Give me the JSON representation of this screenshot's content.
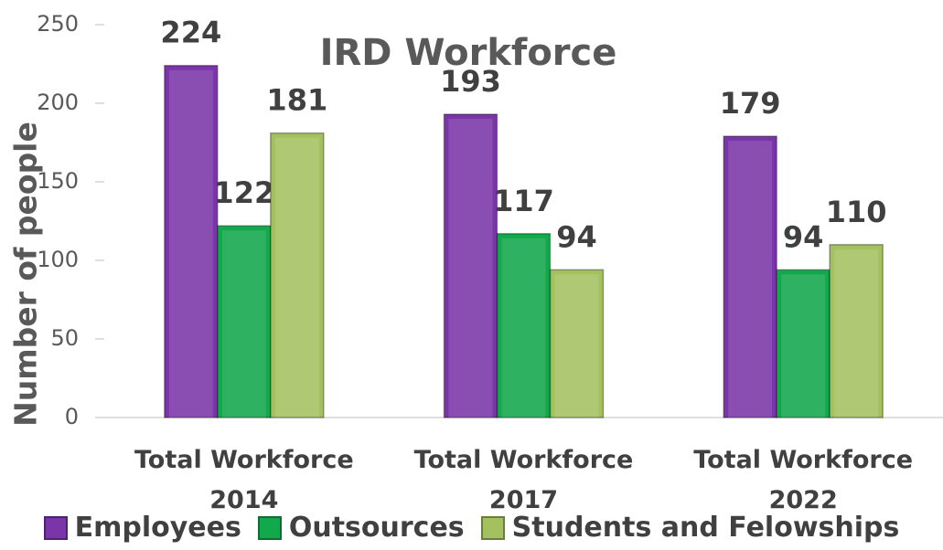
{
  "chart_data": {
    "type": "bar",
    "title": "IRD Workforce",
    "y_label": "Number of people",
    "categories": [
      "Total Workforce 2014",
      "Total Workforce 2017",
      "Total Workforce 2022"
    ],
    "series": [
      {
        "name": "Employees",
        "color": "#7a35a8",
        "values": [
          224,
          193,
          179
        ]
      },
      {
        "name": "Outsources",
        "color": "#12a84c",
        "values": [
          122,
          117,
          94
        ]
      },
      {
        "name": "Students and Felowships",
        "color": "#a4c160",
        "values": [
          181,
          94,
          110
        ]
      }
    ],
    "ylim": [
      0,
      250
    ],
    "yticks": [
      0,
      50,
      100,
      150,
      200,
      250
    ],
    "grid": false,
    "legend": "bottom"
  }
}
